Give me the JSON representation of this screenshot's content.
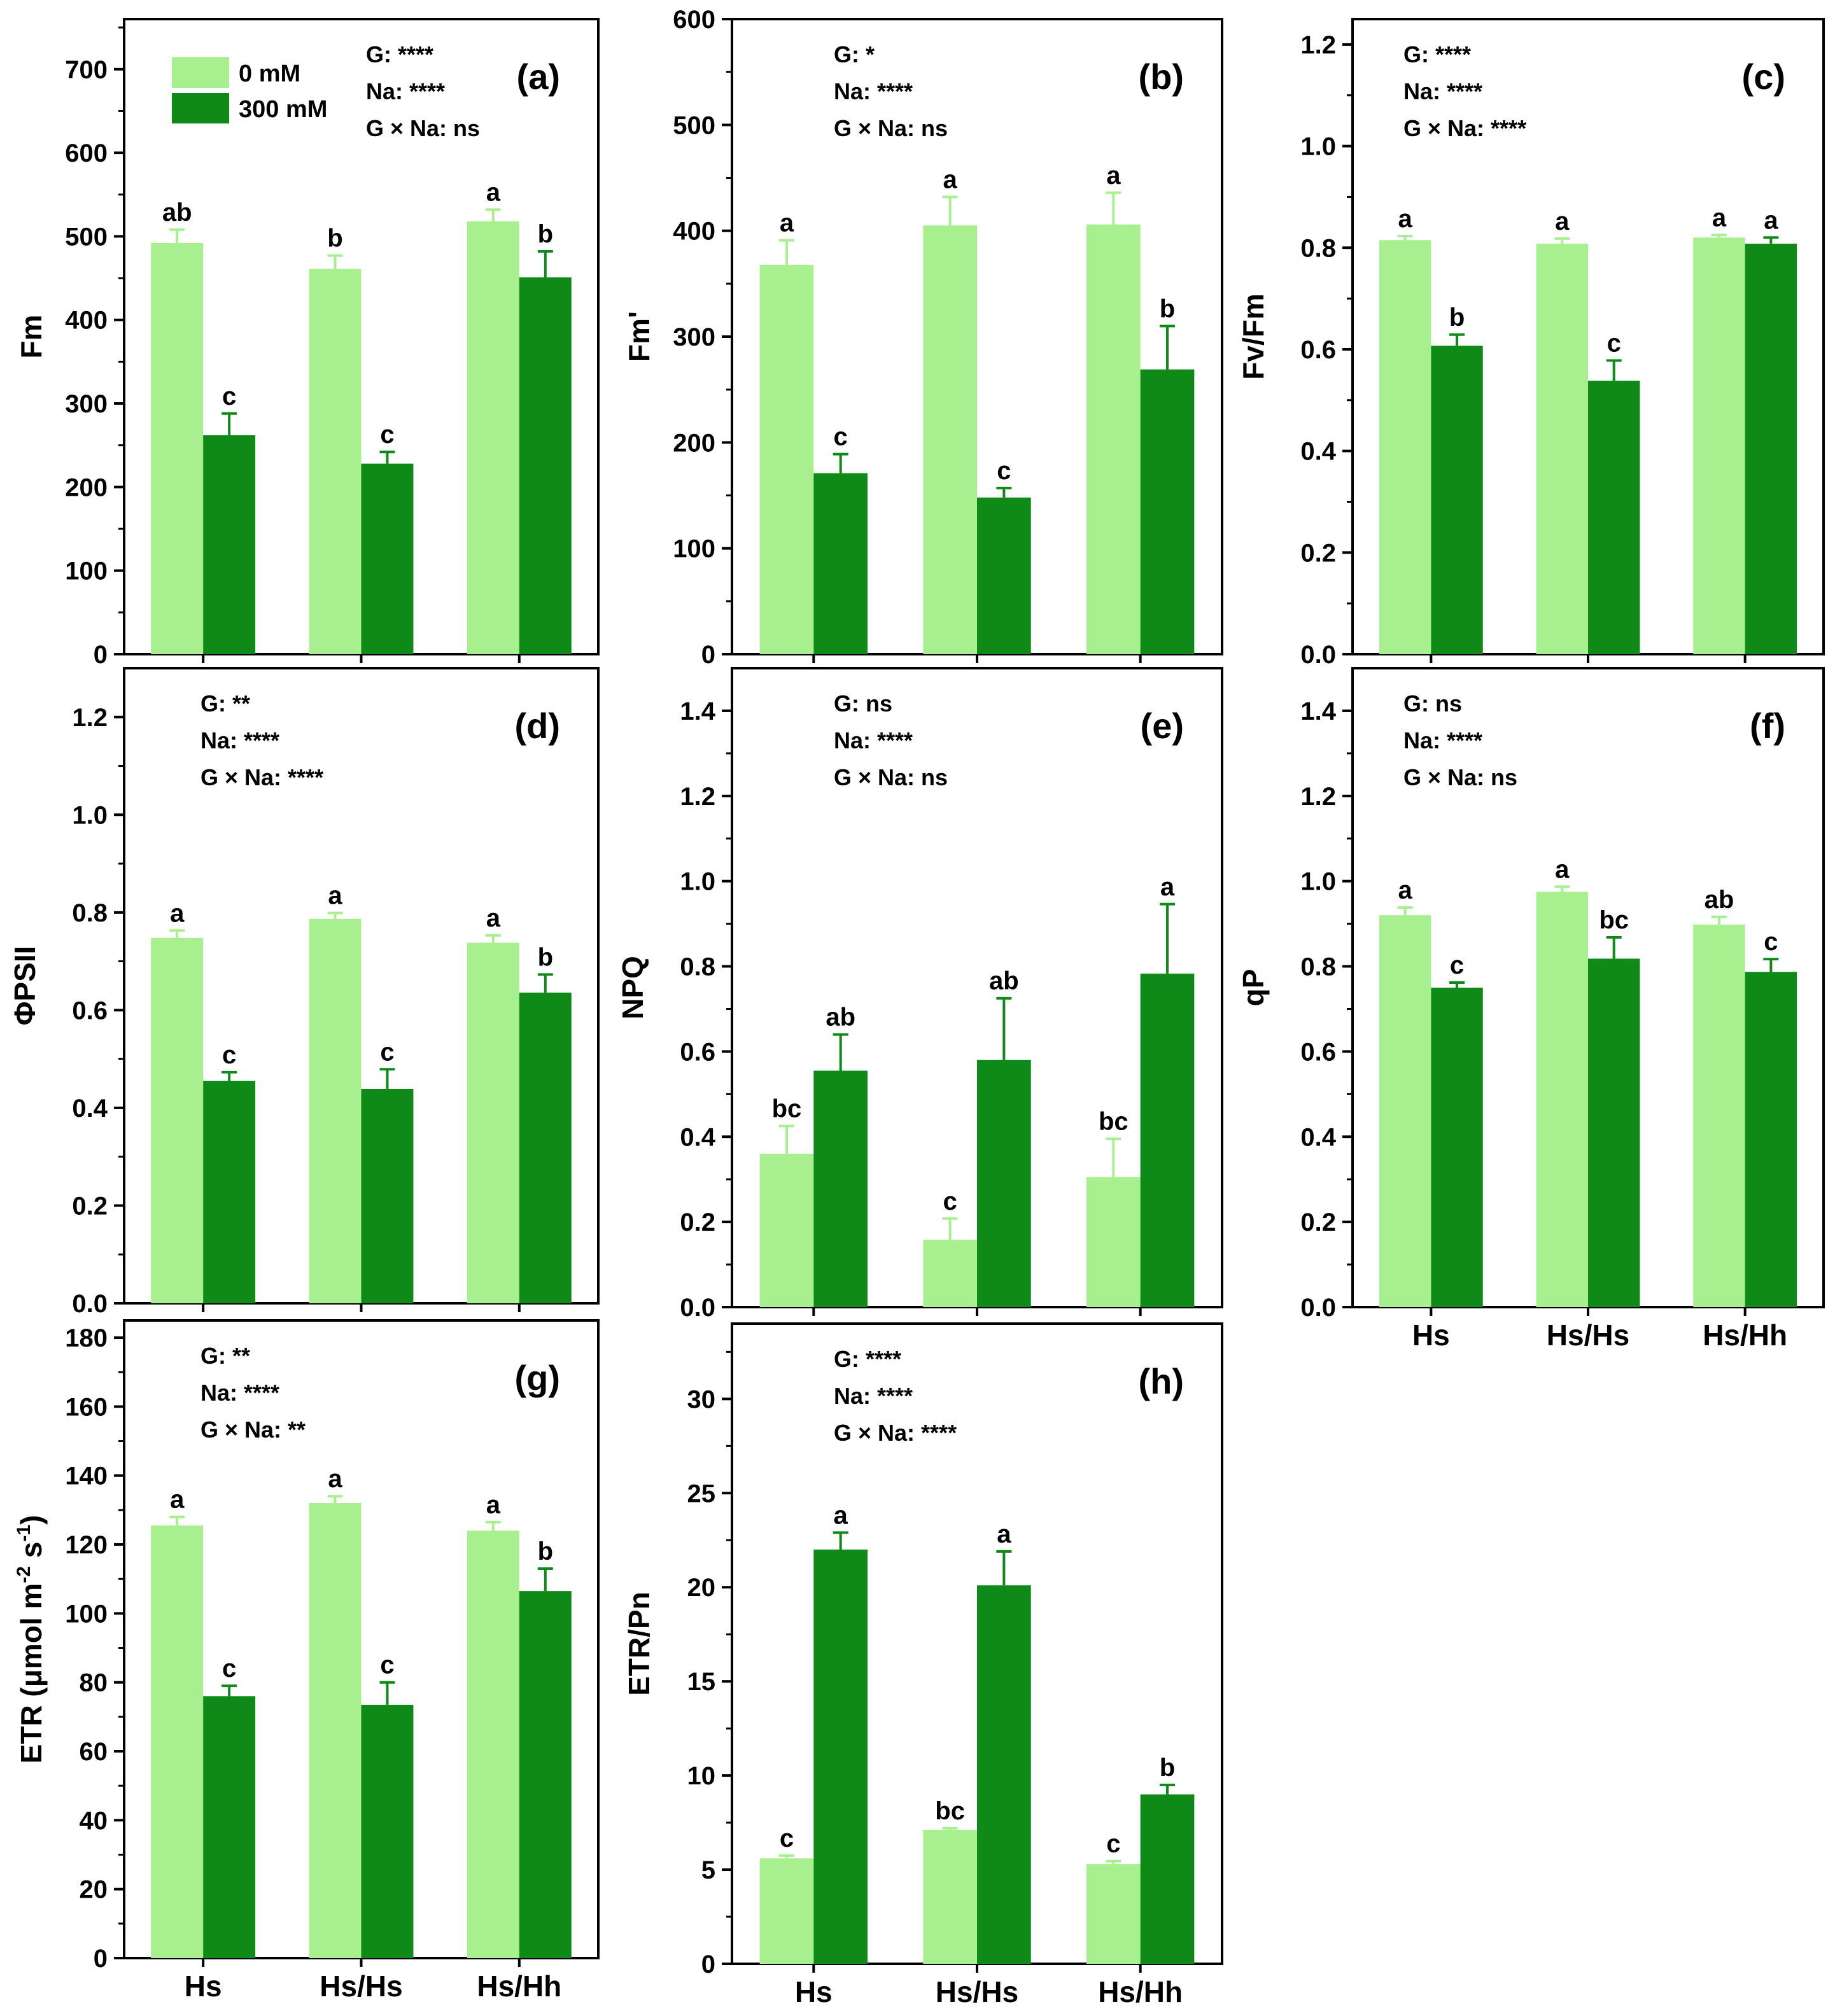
{
  "legend": {
    "items": [
      {
        "label": "0 mM",
        "color": "#a8f08f"
      },
      {
        "label": "300 mM",
        "color": "#0f8a19"
      }
    ]
  },
  "colors": {
    "light": "#a8f08f",
    "dark": "#0f8a19",
    "error_light": "#a8f08f",
    "error_dark": "#0f8a19"
  },
  "chart_data": [
    {
      "panel": "(a)",
      "type": "bar",
      "ylabel": "Fm",
      "ylim": [
        0,
        760
      ],
      "yticks": [
        0,
        100,
        200,
        300,
        400,
        500,
        600,
        700
      ],
      "categories": [
        "Hs",
        "Hs/Hs",
        "Hs/Hh"
      ],
      "show_xticklabels": false,
      "show_legend": true,
      "stats": [
        "G: ****",
        "Na: ****",
        "G × Na: ns"
      ],
      "series": [
        {
          "name": "0 mM",
          "values": [
            492,
            461,
            518
          ],
          "errors": [
            16,
            16,
            14
          ],
          "letters": [
            "ab",
            "b",
            "a"
          ]
        },
        {
          "name": "300 mM",
          "values": [
            262,
            228,
            451
          ],
          "errors": [
            26,
            14,
            31
          ],
          "letters": [
            "c",
            "c",
            "b"
          ]
        }
      ]
    },
    {
      "panel": "(b)",
      "type": "bar",
      "ylabel": "Fm'",
      "ylim": [
        0,
        600
      ],
      "yticks": [
        0,
        100,
        200,
        300,
        400,
        500,
        600
      ],
      "categories": [
        "Hs",
        "Hs/Hs",
        "Hs/Hh"
      ],
      "show_xticklabels": false,
      "show_legend": false,
      "stats": [
        "G: *",
        "Na: ****",
        "G × Na: ns"
      ],
      "series": [
        {
          "name": "0 mM",
          "values": [
            368,
            405,
            406
          ],
          "errors": [
            23,
            27,
            30
          ],
          "letters": [
            "a",
            "a",
            "a"
          ]
        },
        {
          "name": "300 mM",
          "values": [
            171,
            148,
            269
          ],
          "errors": [
            18,
            9,
            41
          ],
          "letters": [
            "c",
            "c",
            "b"
          ]
        }
      ]
    },
    {
      "panel": "(c)",
      "type": "bar",
      "ylabel": "Fv/Fm",
      "ylim": [
        0,
        1.25
      ],
      "yticks": [
        0.0,
        0.2,
        0.4,
        0.6,
        0.8,
        1.0,
        1.2
      ],
      "categories": [
        "Hs",
        "Hs/Hs",
        "Hs/Hh"
      ],
      "show_xticklabels": false,
      "show_legend": false,
      "stats": [
        "G: ****",
        "Na: ****",
        "G × Na: ****"
      ],
      "series": [
        {
          "name": "0 mM",
          "values": [
            0.815,
            0.808,
            0.82
          ],
          "errors": [
            0.008,
            0.01,
            0.005
          ],
          "letters": [
            "a",
            "a",
            "a"
          ]
        },
        {
          "name": "300 mM",
          "values": [
            0.607,
            0.538,
            0.808
          ],
          "errors": [
            0.022,
            0.04,
            0.012
          ],
          "letters": [
            "b",
            "c",
            "a"
          ]
        }
      ]
    },
    {
      "panel": "(d)",
      "type": "bar",
      "ylabel": "ΦPSII",
      "ylim": [
        0,
        1.3
      ],
      "yticks": [
        0.0,
        0.2,
        0.4,
        0.6,
        0.8,
        1.0,
        1.2
      ],
      "categories": [
        "Hs",
        "Hs/Hs",
        "Hs/Hh"
      ],
      "show_xticklabels": false,
      "show_legend": false,
      "stats": [
        "G: **",
        "Na: ****",
        "G × Na: ****"
      ],
      "series": [
        {
          "name": "0 mM",
          "values": [
            0.748,
            0.787,
            0.738
          ],
          "errors": [
            0.015,
            0.012,
            0.015
          ],
          "letters": [
            "a",
            "a",
            "a"
          ]
        },
        {
          "name": "300 mM",
          "values": [
            0.455,
            0.439,
            0.636
          ],
          "errors": [
            0.018,
            0.04,
            0.037
          ],
          "letters": [
            "c",
            "c",
            "b"
          ]
        }
      ]
    },
    {
      "panel": "(e)",
      "type": "bar",
      "ylabel": "NPQ",
      "ylim": [
        0,
        1.5
      ],
      "yticks": [
        0.0,
        0.2,
        0.4,
        0.6,
        0.8,
        1.0,
        1.2,
        1.4
      ],
      "categories": [
        "Hs",
        "Hs/Hs",
        "Hs/Hh"
      ],
      "show_xticklabels": false,
      "show_legend": false,
      "stats": [
        "G: ns",
        "Na: ****",
        "G × Na: ns"
      ],
      "series": [
        {
          "name": "0 mM",
          "values": [
            0.36,
            0.158,
            0.305
          ],
          "errors": [
            0.065,
            0.05,
            0.09
          ],
          "letters": [
            "bc",
            "c",
            "bc"
          ]
        },
        {
          "name": "300 mM",
          "values": [
            0.555,
            0.58,
            0.783
          ],
          "errors": [
            0.085,
            0.145,
            0.163
          ],
          "letters": [
            "ab",
            "ab",
            "a"
          ]
        }
      ]
    },
    {
      "panel": "(f)",
      "type": "bar",
      "ylabel": "qP",
      "ylim": [
        0,
        1.5
      ],
      "yticks": [
        0.0,
        0.2,
        0.4,
        0.6,
        0.8,
        1.0,
        1.2,
        1.4
      ],
      "categories": [
        "Hs",
        "Hs/Hs",
        "Hs/Hh"
      ],
      "show_xticklabels": true,
      "show_legend": false,
      "stats": [
        "G: ns",
        "Na: ****",
        "G × Na: ns"
      ],
      "series": [
        {
          "name": "0 mM",
          "values": [
            0.92,
            0.975,
            0.898
          ],
          "errors": [
            0.018,
            0.012,
            0.018
          ],
          "letters": [
            "a",
            "a",
            "ab"
          ]
        },
        {
          "name": "300 mM",
          "values": [
            0.75,
            0.818,
            0.787
          ],
          "errors": [
            0.012,
            0.05,
            0.03
          ],
          "letters": [
            "c",
            "bc",
            "c"
          ]
        }
      ]
    },
    {
      "panel": "(g)",
      "type": "bar",
      "ylabel": "ETR (μmol m-2 s-1)",
      "ylim": [
        0,
        185
      ],
      "yticks": [
        0,
        20,
        40,
        60,
        80,
        100,
        120,
        140,
        160,
        180
      ],
      "categories": [
        "Hs",
        "Hs/Hs",
        "Hs/Hh"
      ],
      "show_xticklabels": true,
      "show_legend": false,
      "stats": [
        "G: **",
        "Na: ****",
        "G × Na: **"
      ],
      "series": [
        {
          "name": "0 mM",
          "values": [
            125.5,
            132,
            124
          ],
          "errors": [
            2.5,
            2,
            2.5
          ],
          "letters": [
            "a",
            "a",
            "a"
          ]
        },
        {
          "name": "300 mM",
          "values": [
            76,
            73.5,
            106.5
          ],
          "errors": [
            3,
            6.5,
            6.5
          ],
          "letters": [
            "c",
            "c",
            "b"
          ]
        }
      ]
    },
    {
      "panel": "(h)",
      "type": "bar",
      "ylabel": "ETR/Pn",
      "ylim": [
        0,
        34
      ],
      "yticks": [
        0,
        5,
        10,
        15,
        20,
        25,
        30
      ],
      "categories": [
        "Hs",
        "Hs/Hs",
        "Hs/Hh"
      ],
      "show_xticklabels": true,
      "show_legend": false,
      "stats": [
        "G: ****",
        "Na: ****",
        "G × Na: ****"
      ],
      "series": [
        {
          "name": "0 mM",
          "values": [
            5.6,
            7.1,
            5.3
          ],
          "errors": [
            0.15,
            0.1,
            0.15
          ],
          "letters": [
            "c",
            "bc",
            "c"
          ]
        },
        {
          "name": "300 mM",
          "values": [
            22,
            20.1,
            9.0
          ],
          "errors": [
            0.9,
            1.8,
            0.5
          ],
          "letters": [
            "a",
            "a",
            "b"
          ]
        }
      ]
    }
  ]
}
